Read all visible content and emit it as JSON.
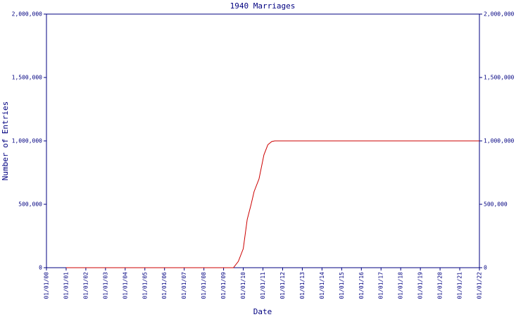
{
  "chart_data": {
    "type": "line",
    "title": "1940 Marriages",
    "x_label": "Date",
    "y_label": "Number of Entries",
    "x": [
      2001,
      2009,
      2009.5,
      2009.75,
      2010,
      2010.2,
      2010.4,
      2010.55,
      2010.8,
      2011.05,
      2011.25,
      2011.45,
      2011.6,
      2022
    ],
    "values": [
      0,
      0,
      0,
      50000,
      150000,
      380000,
      500000,
      600000,
      700000,
      890000,
      970000,
      995000,
      1000000,
      1000000
    ],
    "color": "#cc0000",
    "axis_color": "#000080",
    "xlim": [
      2000,
      2022
    ],
    "xticks": [
      {
        "value": 2000,
        "label": "01/01/00"
      },
      {
        "value": 2001,
        "label": "01/01/01"
      },
      {
        "value": 2002,
        "label": "01/01/02"
      },
      {
        "value": 2003,
        "label": "01/01/03"
      },
      {
        "value": 2004,
        "label": "01/01/04"
      },
      {
        "value": 2005,
        "label": "01/01/05"
      },
      {
        "value": 2006,
        "label": "01/01/06"
      },
      {
        "value": 2007,
        "label": "01/01/07"
      },
      {
        "value": 2008,
        "label": "01/01/08"
      },
      {
        "value": 2009,
        "label": "01/01/09"
      },
      {
        "value": 2010,
        "label": "01/01/10"
      },
      {
        "value": 2011,
        "label": "01/01/11"
      },
      {
        "value": 2012,
        "label": "01/01/12"
      },
      {
        "value": 2013,
        "label": "01/01/13"
      },
      {
        "value": 2014,
        "label": "01/01/14"
      },
      {
        "value": 2015,
        "label": "01/01/15"
      },
      {
        "value": 2016,
        "label": "01/01/16"
      },
      {
        "value": 2017,
        "label": "01/01/17"
      },
      {
        "value": 2018,
        "label": "01/01/18"
      },
      {
        "value": 2019,
        "label": "01/01/19"
      },
      {
        "value": 2020,
        "label": "01/01/20"
      },
      {
        "value": 2021,
        "label": "01/01/21"
      },
      {
        "value": 2022,
        "label": "01/01/22"
      }
    ],
    "ylim": [
      0,
      2000000
    ],
    "yticks": [
      {
        "value": 0,
        "label": "0"
      },
      {
        "value": 500000,
        "label": "500,000"
      },
      {
        "value": 1000000,
        "label": "1,000,000"
      },
      {
        "value": 1500000,
        "label": "1,500,000"
      },
      {
        "value": 2000000,
        "label": "2,000,000"
      }
    ]
  }
}
